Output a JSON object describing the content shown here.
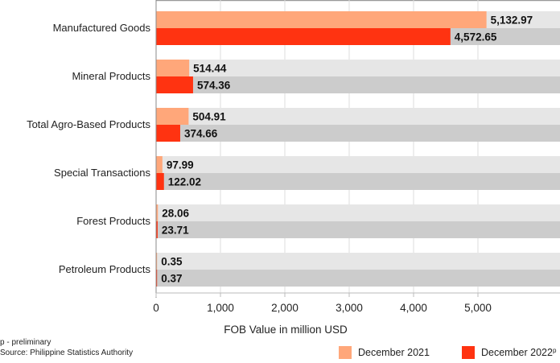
{
  "chart_data": {
    "type": "bar",
    "orientation": "horizontal",
    "title": "",
    "xlabel": "FOB Value in million USD",
    "ylabel": "",
    "xlim": [
      0,
      6250
    ],
    "xticks": [
      0,
      1000,
      2000,
      3000,
      4000,
      5000
    ],
    "xtick_labels": [
      "0",
      "1,000",
      "2,000",
      "3,000",
      "4,000",
      "5,000"
    ],
    "grid": true,
    "legend_position": "bottom-right",
    "categories": [
      "Manufactured Goods",
      "Mineral Products",
      "Total Agro-Based Products",
      "Special Transactions",
      "Forest Products",
      "Petroleum Products"
    ],
    "series": [
      {
        "name": "December 2021",
        "superscript": "",
        "color": "#FFA77A",
        "track_color": "#E6E6E6",
        "values": [
          5132.97,
          514.44,
          504.91,
          97.99,
          28.06,
          0.35
        ],
        "labels": [
          "5,132.97",
          "514.44",
          "504.91",
          "97.99",
          "28.06",
          "0.35"
        ]
      },
      {
        "name": "December 2022",
        "superscript": "p",
        "color": "#FF3311",
        "track_color": "#CCCCCC",
        "values": [
          4572.65,
          574.36,
          374.66,
          122.02,
          23.71,
          0.37
        ],
        "labels": [
          "4,572.65",
          "574.36",
          "374.66",
          "122.02",
          "23.71",
          "0.37"
        ]
      }
    ]
  },
  "footnotes": {
    "preliminary": "p - preliminary",
    "source": "Source: Philippine Statistics Authority"
  }
}
